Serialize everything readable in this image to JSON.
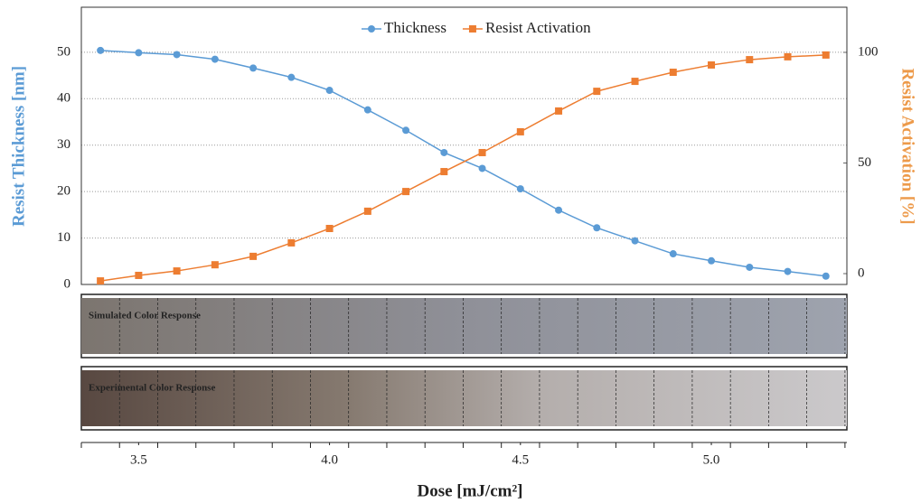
{
  "chart_data": {
    "type": "line",
    "x_label": "Dose [mJ/cm²]",
    "y_label": "Resist Thickness [nm]",
    "y2_label": "Resist Activation [%]",
    "x": [
      3.4,
      3.5,
      3.6,
      3.7,
      3.8,
      3.9,
      4.0,
      4.1,
      4.2,
      4.3,
      4.4,
      4.5,
      4.6,
      4.7,
      4.8,
      4.9,
      5.0,
      5.1,
      5.2,
      5.3
    ],
    "series": [
      {
        "name": "Thickness",
        "color": "#5b9bd5",
        "marker": "circle",
        "values": [
          50.4,
          49.9,
          49.5,
          48.5,
          46.6,
          44.6,
          41.8,
          37.6,
          33.2,
          28.4,
          25.0,
          20.6,
          16.0,
          12.2,
          9.4,
          6.6,
          5.1,
          3.7,
          2.8,
          1.8
        ]
      },
      {
        "name": "Resist Activation",
        "color": "#ed7d31",
        "marker": "square",
        "axis": "y2",
        "values": [
          -3.3,
          -0.8,
          1.2,
          4.0,
          7.8,
          13.9,
          20.4,
          28.2,
          37.1,
          46.1,
          54.7,
          64.1,
          73.5,
          82.4,
          86.9,
          91.0,
          94.3,
          96.7,
          98.0,
          98.8
        ]
      }
    ],
    "xlim": [
      3.35,
      5.355
    ],
    "xticks": [
      3.5,
      {
        "value": 4,
        "label": "4.0"
      },
      4.5,
      {
        "value": 5,
        "label": "5.0"
      }
    ],
    "ylim": [
      0,
      59.7
    ],
    "yticks": [
      0,
      10,
      20,
      30,
      40,
      50
    ],
    "y2lim": [
      -4.9,
      120.4
    ],
    "y2ticks": [
      0,
      50,
      100
    ],
    "grid": true,
    "legend": "top",
    "strips": [
      {
        "label": "Simulated Color Response"
      },
      {
        "label": "Experimental Color Response"
      }
    ]
  }
}
